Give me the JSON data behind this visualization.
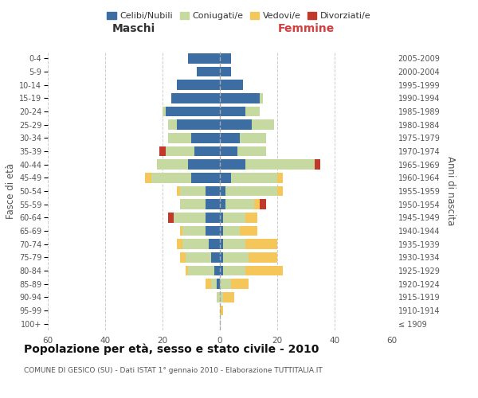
{
  "age_groups": [
    "100+",
    "95-99",
    "90-94",
    "85-89",
    "80-84",
    "75-79",
    "70-74",
    "65-69",
    "60-64",
    "55-59",
    "50-54",
    "45-49",
    "40-44",
    "35-39",
    "30-34",
    "25-29",
    "20-24",
    "15-19",
    "10-14",
    "5-9",
    "0-4"
  ],
  "birth_years": [
    "≤ 1909",
    "1910-1914",
    "1915-1919",
    "1920-1924",
    "1925-1929",
    "1930-1934",
    "1935-1939",
    "1940-1944",
    "1945-1949",
    "1950-1954",
    "1955-1959",
    "1960-1964",
    "1965-1969",
    "1970-1974",
    "1975-1979",
    "1980-1984",
    "1985-1989",
    "1990-1994",
    "1995-1999",
    "2000-2004",
    "2005-2009"
  ],
  "male": {
    "celibi": [
      0,
      0,
      0,
      1,
      2,
      3,
      4,
      5,
      5,
      5,
      5,
      10,
      11,
      9,
      10,
      15,
      19,
      17,
      15,
      8,
      11
    ],
    "coniugati": [
      0,
      0,
      1,
      2,
      9,
      9,
      9,
      8,
      11,
      9,
      9,
      14,
      11,
      10,
      8,
      3,
      1,
      0,
      0,
      0,
      0
    ],
    "vedovi": [
      0,
      0,
      0,
      2,
      1,
      2,
      2,
      1,
      0,
      0,
      1,
      2,
      0,
      0,
      0,
      0,
      0,
      0,
      0,
      0,
      0
    ],
    "divorziati": [
      0,
      0,
      0,
      0,
      0,
      0,
      0,
      0,
      2,
      0,
      0,
      0,
      0,
      2,
      0,
      0,
      0,
      0,
      0,
      0,
      0
    ]
  },
  "female": {
    "nubili": [
      0,
      0,
      0,
      0,
      1,
      1,
      1,
      1,
      1,
      2,
      2,
      4,
      9,
      6,
      7,
      11,
      9,
      14,
      8,
      4,
      4
    ],
    "coniugate": [
      0,
      0,
      1,
      4,
      8,
      9,
      8,
      6,
      8,
      10,
      18,
      16,
      24,
      10,
      9,
      8,
      5,
      1,
      0,
      0,
      0
    ],
    "vedove": [
      0,
      1,
      4,
      6,
      13,
      10,
      11,
      6,
      4,
      2,
      2,
      2,
      0,
      0,
      0,
      0,
      0,
      0,
      0,
      0,
      0
    ],
    "divorziate": [
      0,
      0,
      0,
      0,
      0,
      0,
      0,
      0,
      0,
      2,
      0,
      0,
      2,
      0,
      0,
      0,
      0,
      0,
      0,
      0,
      0
    ]
  },
  "colors": {
    "celibi_nubili": "#3d6ea3",
    "coniugati": "#c5d9a0",
    "vedovi": "#f5c75a",
    "divorziati": "#c0392b"
  },
  "xlim": 60,
  "title": "Popolazione per età, sesso e stato civile - 2010",
  "subtitle": "COMUNE DI GESICO (SU) - Dati ISTAT 1° gennaio 2010 - Elaborazione TUTTITALIA.IT",
  "xlabel_left": "Maschi",
  "xlabel_right": "Femmine",
  "ylabel_left": "Fasce di età",
  "ylabel_right": "Anni di nascita"
}
